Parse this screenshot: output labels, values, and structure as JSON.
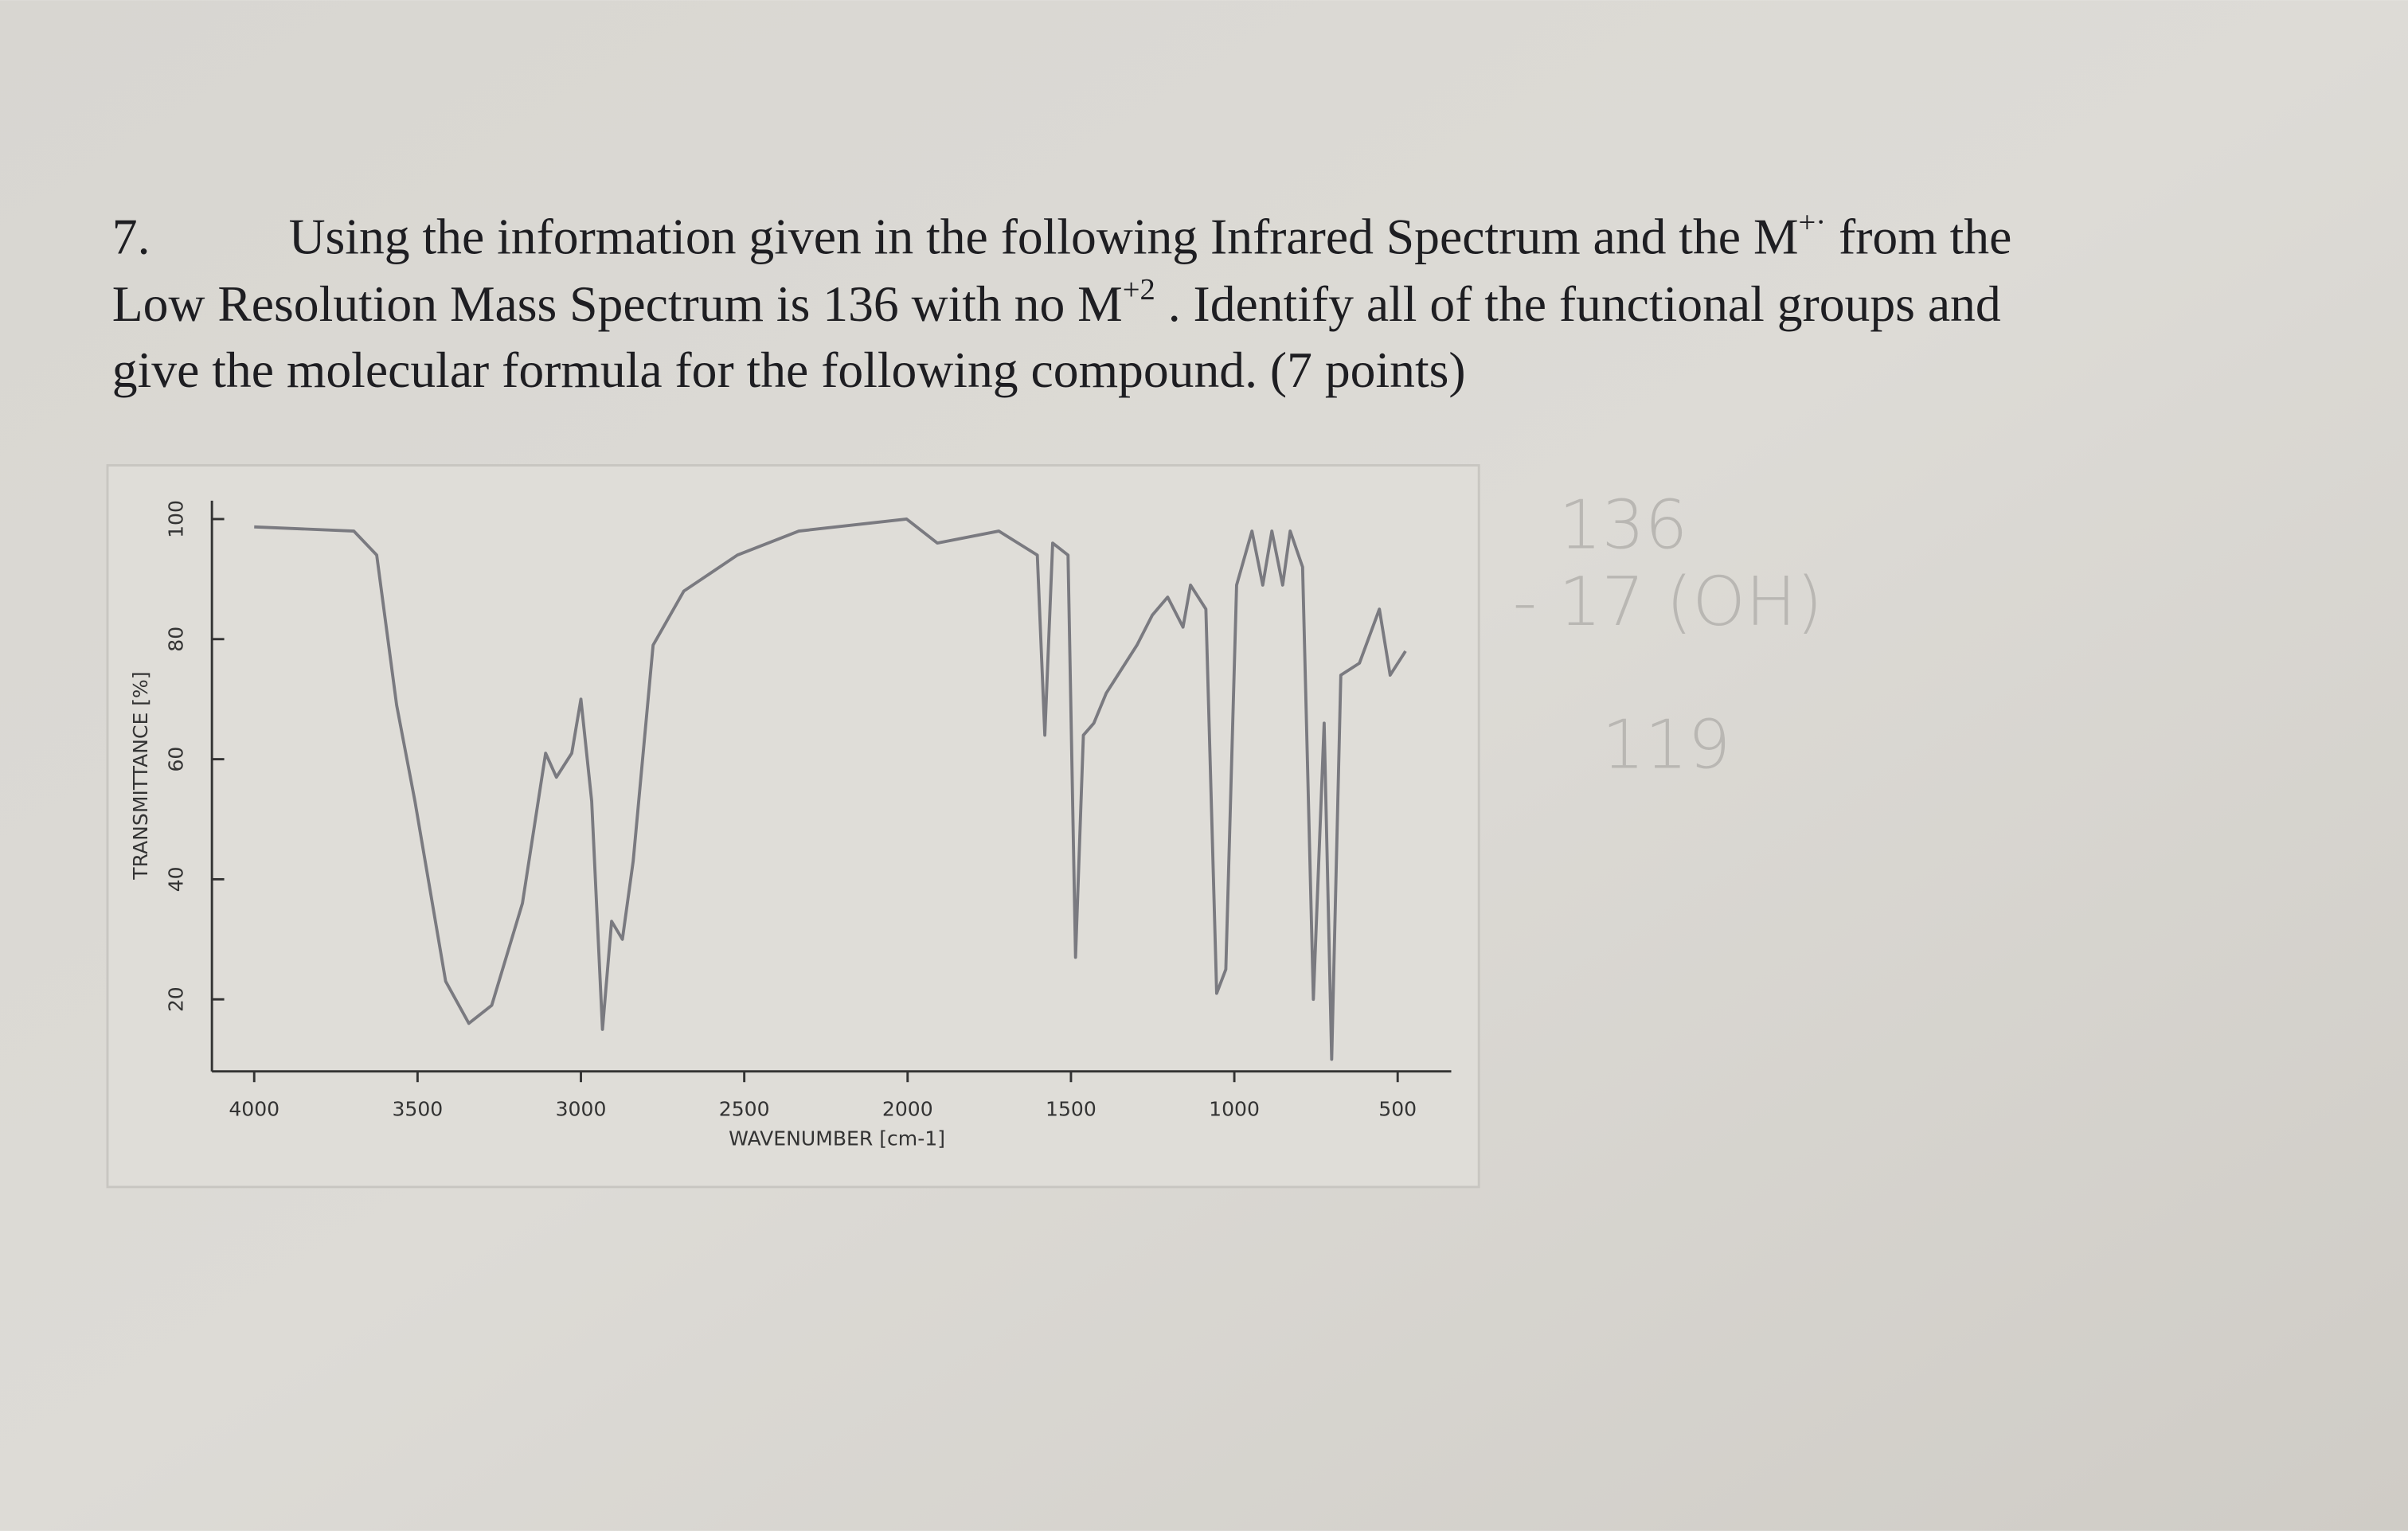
{
  "question": {
    "number": "7.",
    "lines": [
      [
        "Using the information given in the following Infrared Spectrum and the M",
        "+·",
        " from the"
      ],
      [
        "Low Resolution Mass Spectrum is 136 with no M",
        "+2",
        " .  Identify all of the functional groups and"
      ],
      [
        "give the molecular formula for the following compound.   (7 points)"
      ]
    ]
  },
  "handwriting": [
    "136",
    "- 17 (OH)",
    "119"
  ],
  "chart_data": {
    "type": "line",
    "xlabel": "WAVENUMBER [cm-1]",
    "ylabel": "TRANSMITTANCE [%]",
    "color": "#7a7a80",
    "x": [
      4000,
      3695,
      3625,
      3564,
      3508,
      3414,
      3343,
      3273,
      3179,
      3108,
      3075,
      3028,
      3000,
      2967,
      2934,
      2906,
      2873,
      2840,
      2779,
      2685,
      2521,
      2333,
      2003,
      1909,
      1721,
      1603,
      1580,
      1556,
      1509,
      1486,
      1462,
      1430,
      1392,
      1298,
      1251,
      1204,
      1157,
      1134,
      1087,
      1054,
      1026,
      993,
      946,
      913,
      885,
      852,
      829,
      791,
      758,
      725,
      702,
      674,
      617,
      556,
      523,
      476
    ],
    "values": [
      98.7,
      98,
      94,
      69,
      53,
      23,
      16,
      19,
      36,
      61,
      57,
      61,
      70,
      53,
      15,
      33,
      30,
      43,
      79,
      88,
      94,
      98,
      100,
      96,
      98,
      94,
      64,
      96,
      94,
      27,
      64,
      66,
      71,
      79,
      84,
      87,
      82,
      89,
      85,
      21,
      25,
      89,
      98,
      89,
      98,
      89,
      98,
      92,
      20,
      66,
      10,
      74,
      76,
      85,
      74,
      78
    ],
    "xlim": [
      4120,
      430
    ],
    "ylim": [
      8,
      100
    ],
    "xticks": [
      4000,
      3500,
      3000,
      2500,
      2000,
      1500,
      1000,
      500
    ],
    "yticks": [
      20,
      40,
      60,
      80,
      100
    ]
  }
}
